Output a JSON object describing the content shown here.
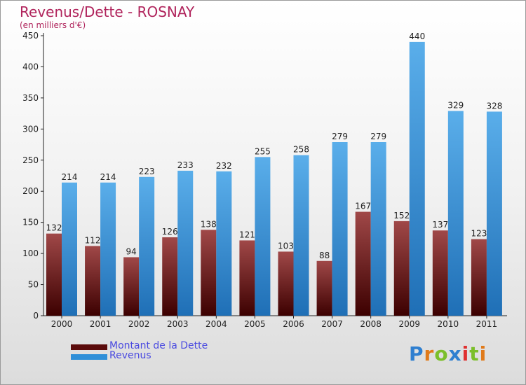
{
  "title": "Revenus/Dette - ROSNAY",
  "subtitle": "(en milliers d'€)",
  "colors": {
    "debt": "#6b0f0f",
    "revenue": "#2f8fd8",
    "title": "#b0245c",
    "legend_text": "#4a4ae0"
  },
  "legend": [
    {
      "label": "Montant de la Dette",
      "series": "debt"
    },
    {
      "label": "Revenus",
      "series": "revenue"
    }
  ],
  "logo": {
    "text": "Proxiti",
    "letters": [
      "P",
      "r",
      "o",
      "x",
      "i",
      "t",
      "i"
    ]
  },
  "chart_data": {
    "type": "bar",
    "categories": [
      "2000",
      "2001",
      "2002",
      "2003",
      "2004",
      "2005",
      "2006",
      "2007",
      "2008",
      "2009",
      "2010",
      "2011"
    ],
    "series": [
      {
        "name": "Montant de la Dette",
        "values": [
          132,
          112,
          94,
          126,
          138,
          121,
          103,
          88,
          167,
          152,
          137,
          123
        ]
      },
      {
        "name": "Revenus",
        "values": [
          214,
          214,
          223,
          233,
          232,
          255,
          258,
          279,
          279,
          440,
          329,
          328
        ]
      }
    ],
    "ylim": [
      0,
      450
    ],
    "yticks": [
      0,
      50,
      100,
      150,
      200,
      250,
      300,
      350,
      400,
      450
    ],
    "grid": false,
    "legend_position": "bottom-left",
    "title": "Revenus/Dette - ROSNAY",
    "ylabel": "(en milliers d'€)"
  }
}
